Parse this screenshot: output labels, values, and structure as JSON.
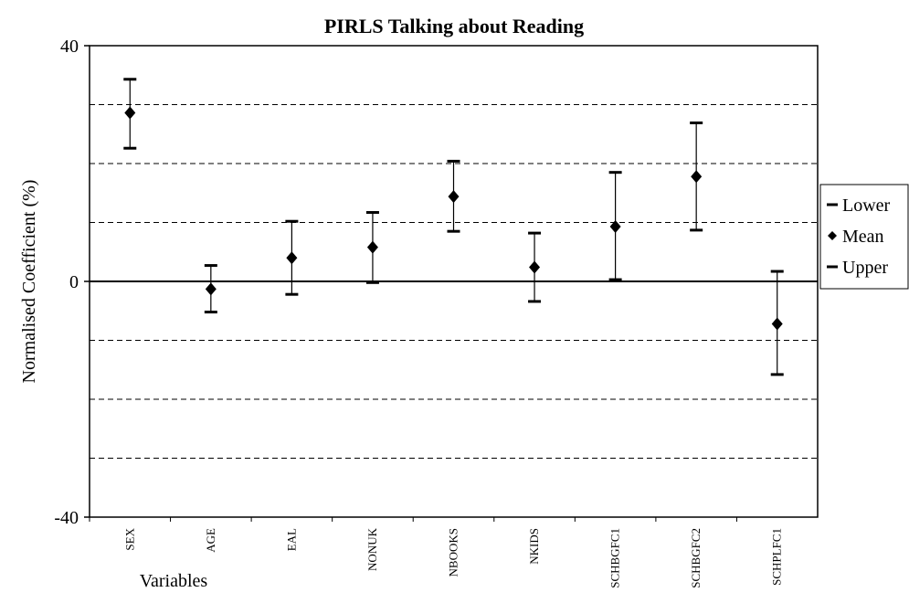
{
  "chart_data": {
    "type": "scatter",
    "title": "PIRLS Talking about Reading",
    "xlabel": "Variables",
    "ylabel": "Normalised Coefficient (%)",
    "ylim": [
      -40,
      40
    ],
    "y_ticks": [
      "40",
      "0",
      "-40"
    ],
    "y_tick_values": [
      40,
      0,
      -40
    ],
    "gridlines": [
      30,
      20,
      10,
      -10,
      -20,
      -30
    ],
    "grid": true,
    "legend_position": "right",
    "categories": [
      "SEX",
      "AGE",
      "EAL",
      "NONUK",
      "NBOOKS",
      "NKIDS",
      "SCHBGFC1",
      "SCHBGFC2",
      "SCHPLFC1"
    ],
    "series": [
      {
        "name": "Lower",
        "values": [
          22.6,
          -5.2,
          -2.2,
          -0.2,
          8.5,
          -3.4,
          0.3,
          8.7,
          -15.8
        ]
      },
      {
        "name": "Mean",
        "values": [
          28.6,
          -1.3,
          4.0,
          5.8,
          14.4,
          2.4,
          9.3,
          17.8,
          -7.2
        ]
      },
      {
        "name": "Upper",
        "values": [
          34.3,
          2.7,
          10.2,
          11.7,
          20.4,
          8.2,
          18.5,
          26.9,
          1.7
        ]
      }
    ]
  },
  "colors": {
    "marker": "#000000",
    "grid": "#000000",
    "background": "#ffffff"
  }
}
